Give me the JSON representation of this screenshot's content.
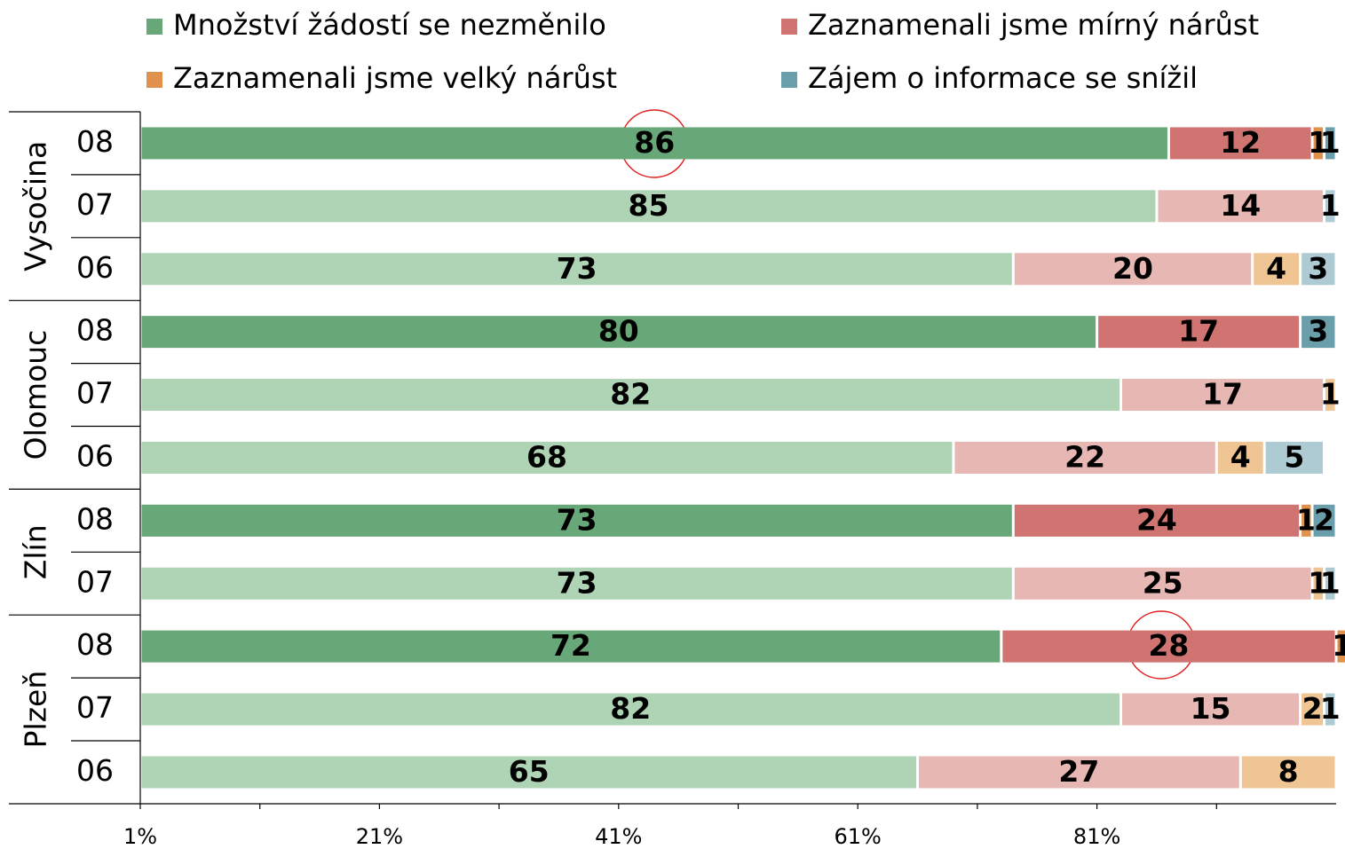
{
  "chart_data": {
    "type": "stacked-barh",
    "groups": [
      {
        "name": "Vysočina",
        "rows": [
          "08",
          "07",
          "06"
        ]
      },
      {
        "name": "Olomouc",
        "rows": [
          "08",
          "07",
          "06"
        ]
      },
      {
        "name": "Zlín",
        "rows": [
          "08",
          "07"
        ]
      },
      {
        "name": "Plzeň",
        "rows": [
          "08",
          "07",
          "06"
        ]
      }
    ],
    "emphasized": [
      true,
      false,
      false,
      true,
      false,
      false,
      true,
      false,
      true,
      false,
      false
    ],
    "series": [
      {
        "name": "Množství žádostí se nezměnilo",
        "color": "#68a777",
        "light_color": "#afd3b5",
        "values": [
          86,
          85,
          73,
          80,
          82,
          68,
          73,
          73,
          72,
          82,
          65
        ]
      },
      {
        "name": "Zaznamenali jsme mírný nárůst",
        "color": "#cf7470",
        "light_color": "#e7b7b3",
        "values": [
          12,
          14,
          20,
          17,
          17,
          22,
          24,
          25,
          28,
          15,
          27
        ]
      },
      {
        "name": "Zaznamenali jsme velký nárůst",
        "color": "#e0914c",
        "light_color": "#efc594",
        "values": [
          1,
          null,
          4,
          null,
          1,
          4,
          1,
          1,
          1,
          2,
          8
        ]
      },
      {
        "name": "Zájem o informace se snížil",
        "color": "#6a9eab",
        "light_color": "#aecbd3",
        "values": [
          1,
          1,
          3,
          3,
          null,
          5,
          2,
          1,
          null,
          1,
          null
        ]
      }
    ],
    "xlim": [
      1,
      101
    ],
    "xticks": [
      {
        "value": 1,
        "label": "1%"
      },
      {
        "value": 21,
        "label": "21%"
      },
      {
        "value": 41,
        "label": "41%"
      },
      {
        "value": 61,
        "label": "61%"
      },
      {
        "value": 81,
        "label": "81%"
      }
    ],
    "xminorticks": [
      11,
      31,
      51,
      71,
      91
    ]
  }
}
